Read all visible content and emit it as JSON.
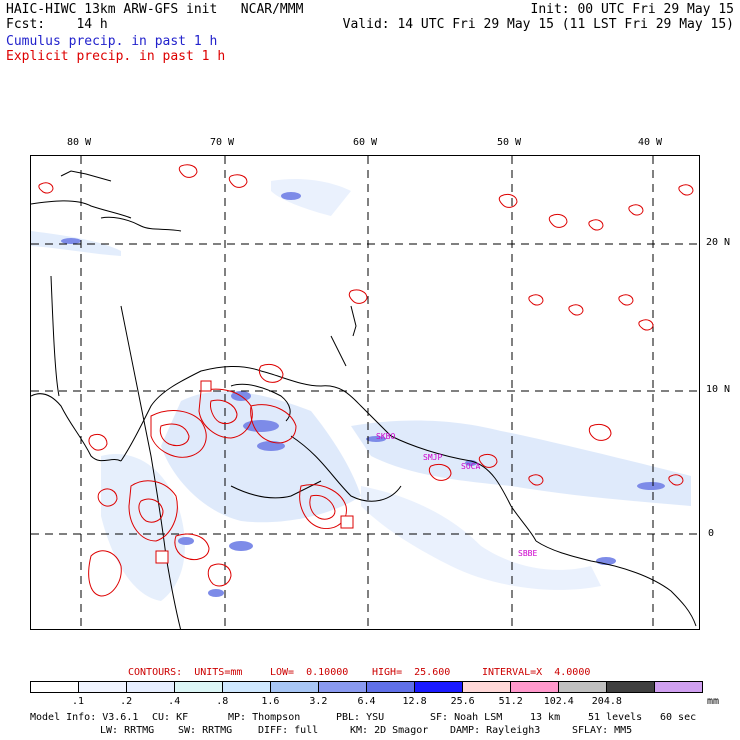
{
  "header": {
    "line1_left": "HAIC-HIWC 13km ARW-GFS init   NCAR/MMM",
    "line1_right": "Init: 00 UTC Fri 29 May 15",
    "line2_left": "Fcst:    14 h",
    "line2_right": "Valid: 14 UTC Fri 29 May 15 (11 LST Fri 29 May 15)",
    "legend_cumulus": "Cumulus precip. in past 1 h",
    "legend_explicit": "Explicit precip. in past 1 h",
    "legend_cumulus_color": "#2222cc",
    "legend_explicit_color": "#dd0000"
  },
  "map": {
    "lon_labels": [
      "80 W",
      "70 W",
      "60 W",
      "50 W",
      "40 W"
    ],
    "lat_labels": [
      "20 N",
      "10 N",
      "0"
    ],
    "station_labels": [
      "SKBO",
      "SMJP",
      "SOCA",
      "SBBE"
    ],
    "station_color": "#cc00cc",
    "contour_color": "#dd0000",
    "land_color": "#000000"
  },
  "contours": {
    "units": "CONTOURS:  UNITS=mm",
    "low": "LOW=  0.10000",
    "high": "HIGH=  25.600",
    "interval": "INTERVAL=X  4.0000"
  },
  "colorbar": {
    "colors": [
      "#ffffff",
      "#f0f4ff",
      "#e6eeff",
      "#dcf6f6",
      "#cfe8ff",
      "#a8c6f5",
      "#8a9af0",
      "#6070e8",
      "#1a1aff",
      "#ffd8d8",
      "#ff99cc",
      "#c0c0c0",
      "#404040",
      "#d0a0f0"
    ],
    "labels": [
      ".1",
      ".2",
      ".4",
      ".8",
      "1.6",
      "3.2",
      "6.4",
      "12.8",
      "25.6",
      "51.2",
      "102.4",
      "204.8"
    ],
    "unit": "mm"
  },
  "footer": {
    "row1": [
      "Model Info: V3.6.1",
      "CU: KF",
      "MP: Thompson",
      "PBL: YSU",
      "SF: Noah LSM",
      "13 km",
      "51 levels",
      "60 sec"
    ],
    "row2": [
      "LW: RRTMG",
      "SW: RRTMG",
      "DIFF: full",
      "KM: 2D Smagor",
      "DAMP: Rayleigh3",
      "SFLAY: MM5"
    ]
  }
}
